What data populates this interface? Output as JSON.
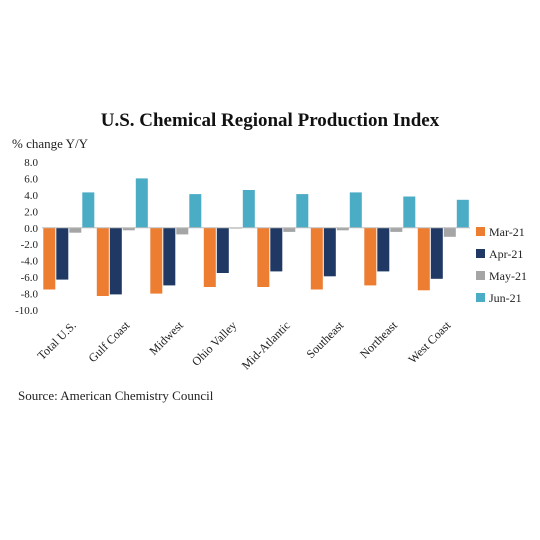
{
  "chart_data": {
    "type": "bar",
    "title": "U.S. Chemical Regional Production Index",
    "ylabel": "% change Y/Y",
    "source": "Source: American Chemistry Council",
    "categories": [
      "Total U.S.",
      "Gulf Coast",
      "Midwest",
      "Ohio Valley",
      "Mid-Atlantic",
      "Southeast",
      "Northeast",
      "West Coast"
    ],
    "ylim": [
      -10,
      8
    ],
    "yticks": [
      "8.0",
      "6.0",
      "4.0",
      "2.0",
      "0.0",
      "-2.0",
      "-4.0",
      "-6.0",
      "-8.0",
      "-10.0"
    ],
    "grid": false,
    "legend_position": "right",
    "series": [
      {
        "name": "Mar-21",
        "color": "#ED7D31",
        "values": [
          -7.5,
          -8.3,
          -8.0,
          -7.2,
          -7.2,
          -7.5,
          -7.0,
          -7.6
        ]
      },
      {
        "name": "Apr-21",
        "color": "#1F3864",
        "values": [
          -6.3,
          -8.1,
          -7.0,
          -5.5,
          -5.3,
          -5.9,
          -5.3,
          -6.2
        ]
      },
      {
        "name": "May-21",
        "color": "#A5A5A5",
        "values": [
          -0.6,
          -0.3,
          -0.8,
          -0.1,
          -0.5,
          -0.3,
          -0.5,
          -1.1
        ]
      },
      {
        "name": "Jun-21",
        "color": "#4BACC6",
        "values": [
          4.3,
          6.0,
          4.1,
          4.6,
          4.1,
          4.3,
          3.8,
          3.4
        ]
      }
    ]
  }
}
